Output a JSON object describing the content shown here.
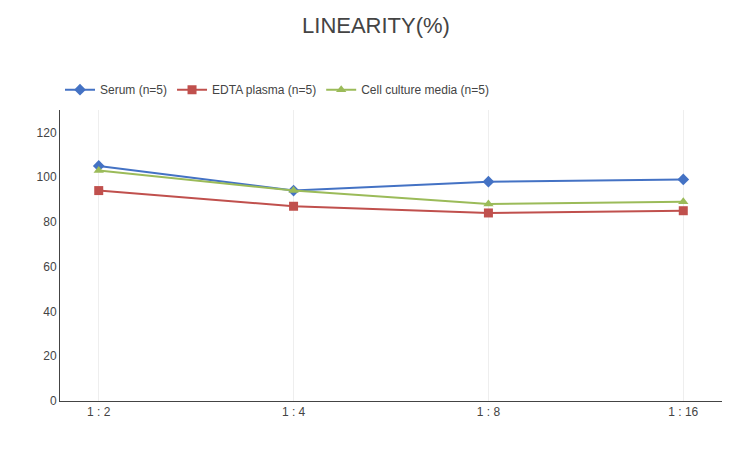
{
  "chart_data": {
    "type": "line",
    "title": "LINEARITY(%)",
    "categories": [
      "1 : 2",
      "1 : 4",
      "1 : 8",
      "1 : 16"
    ],
    "series": [
      {
        "name": "Serum (n=5)",
        "color": "#4472C4",
        "marker": "diamond",
        "values": [
          105,
          94,
          98,
          99
        ]
      },
      {
        "name": "EDTA plasma (n=5)",
        "color": "#C0504D",
        "marker": "square",
        "values": [
          94,
          87,
          84,
          85
        ]
      },
      {
        "name": "Cell culture media (n=5)",
        "color": "#9BBB59",
        "marker": "triangle-up",
        "values": [
          103,
          94,
          88,
          89
        ]
      }
    ],
    "ylim": [
      0,
      130
    ],
    "yticks": [
      0,
      20,
      40,
      60,
      80,
      100,
      120
    ],
    "grid": "x",
    "legend": "top left"
  }
}
